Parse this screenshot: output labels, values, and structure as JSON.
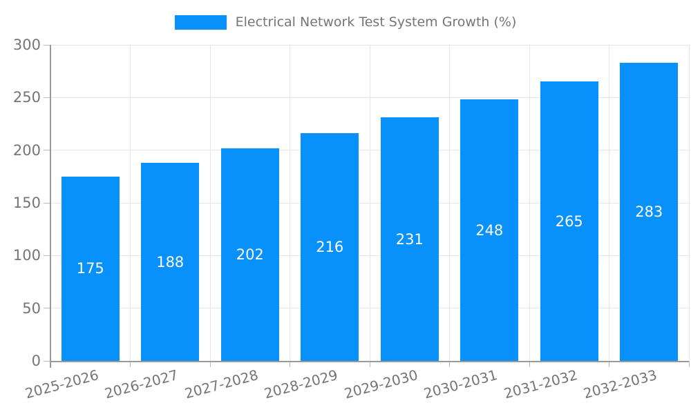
{
  "legend": {
    "label": "Electrical Network Test System Growth (%)"
  },
  "chart_data": {
    "type": "bar",
    "title": "Electrical Network Test System Growth (%)",
    "categories": [
      "2025-2026",
      "2026-2027",
      "2027-2028",
      "2028-2029",
      "2029-2030",
      "2030-2031",
      "2031-2032",
      "2032-2033"
    ],
    "values": [
      175,
      188,
      202,
      216,
      231,
      248,
      265,
      283
    ],
    "xlabel": "",
    "ylabel": "",
    "ylim": [
      0,
      300
    ],
    "yticks": [
      0,
      50,
      100,
      150,
      200,
      250,
      300
    ],
    "grid": true,
    "legend_position": "top",
    "x_label_rotation": -15,
    "colors": {
      "bar": "#0890fb",
      "value_label": "#ffffff",
      "axis_label": "#757575",
      "legend_label": "#757575",
      "grid_line": "#e6e6e6",
      "axis_line": "#999999",
      "tick": "#bbbbbb"
    }
  }
}
